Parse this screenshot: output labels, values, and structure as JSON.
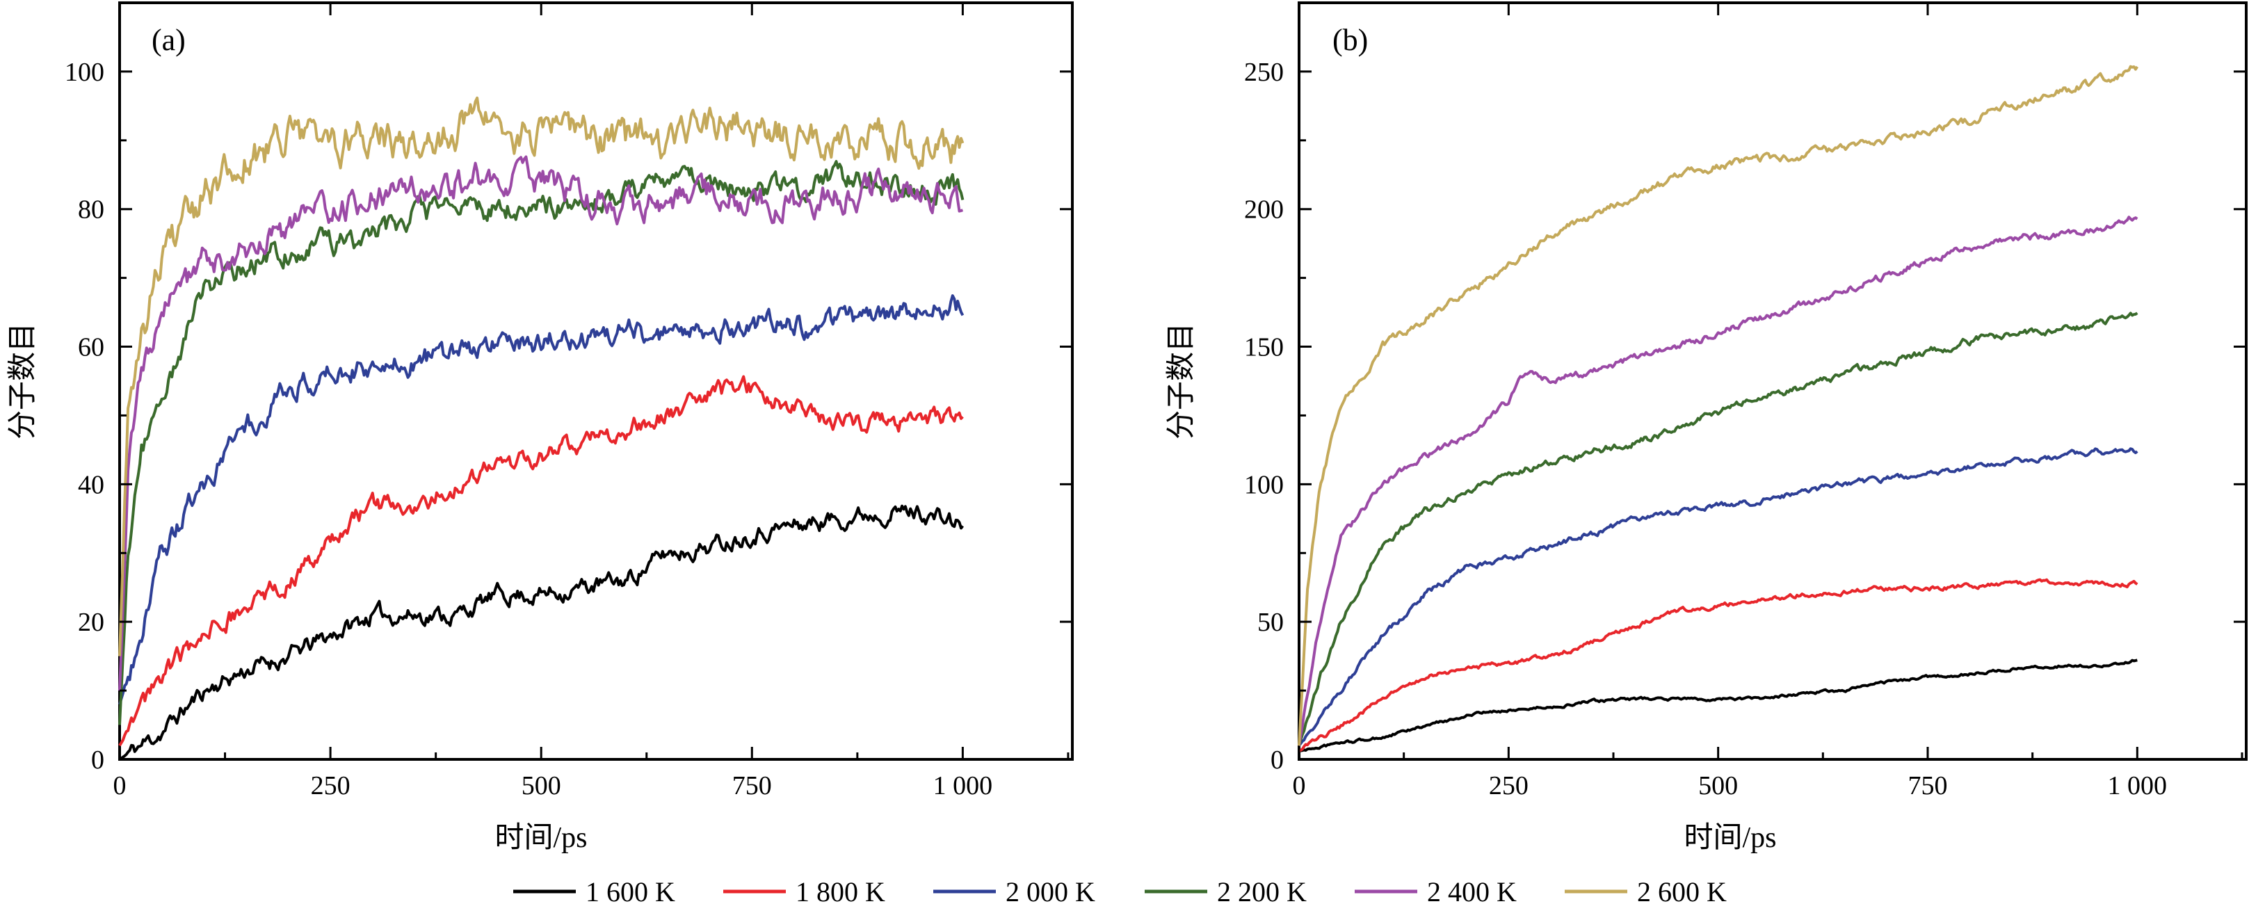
{
  "colors": {
    "1600": "#000000",
    "1800": "#e8262b",
    "2000": "#2e3f96",
    "2200": "#3a6b2c",
    "2400": "#9b4aa6",
    "2600": "#c4a95a"
  },
  "legend": [
    "1 600 K",
    "1 800 K",
    "2 000 K",
    "2 200 K",
    "2 400 K",
    "2 600 K"
  ],
  "chart_data": [
    {
      "type": "line",
      "panel_label": "(a)",
      "xlabel": "时间/ps",
      "ylabel": "分子数目",
      "xlim": [
        0,
        1130
      ],
      "ylim": [
        0,
        110
      ],
      "xticks": [
        0,
        250,
        500,
        750,
        1000
      ],
      "xtick_labels": [
        "0",
        "250",
        "500",
        "750",
        "1 000"
      ],
      "yticks": [
        0,
        20,
        40,
        60,
        80,
        100
      ],
      "ytick_labels": [
        "0",
        "20",
        "40",
        "60",
        "80",
        "100"
      ],
      "grid": false,
      "series": [
        {
          "name": "1 600 K",
          "color_key": "1600",
          "noise": 1.2,
          "x": [
            0,
            50,
            100,
            150,
            200,
            250,
            300,
            350,
            400,
            450,
            500,
            550,
            600,
            650,
            700,
            750,
            800,
            850,
            900,
            950,
            1000
          ],
          "y": [
            0,
            4,
            10,
            13,
            15,
            18,
            21,
            21,
            21,
            24,
            24,
            25,
            26,
            30,
            31,
            33,
            34,
            35,
            36,
            36,
            34
          ]
        },
        {
          "name": "1 800 K",
          "color_key": "1800",
          "noise": 1.3,
          "x": [
            0,
            50,
            100,
            150,
            200,
            250,
            300,
            350,
            400,
            450,
            500,
            550,
            600,
            650,
            700,
            750,
            800,
            850,
            900,
            950,
            1000
          ],
          "y": [
            2,
            12,
            18,
            22,
            26,
            32,
            37,
            37,
            40,
            43,
            44,
            46,
            48,
            50,
            53,
            54,
            51,
            49,
            49,
            49,
            50
          ]
        },
        {
          "name": "2 000 K",
          "color_key": "2000",
          "noise": 1.6,
          "x": [
            0,
            25,
            50,
            100,
            150,
            200,
            250,
            300,
            350,
            400,
            450,
            500,
            550,
            600,
            650,
            700,
            750,
            800,
            850,
            900,
            950,
            1000
          ],
          "y": [
            8,
            18,
            30,
            40,
            48,
            54,
            56,
            57,
            58,
            59,
            60,
            61,
            61,
            62,
            62,
            63,
            63,
            63,
            64,
            65,
            65,
            66
          ]
        },
        {
          "name": "2 200 K",
          "color_key": "2200",
          "noise": 1.6,
          "x": [
            0,
            10,
            25,
            50,
            75,
            100,
            150,
            200,
            250,
            300,
            350,
            400,
            450,
            500,
            550,
            600,
            650,
            700,
            750,
            800,
            850,
            900,
            950,
            1000
          ],
          "y": [
            5,
            30,
            45,
            52,
            60,
            68,
            72,
            74,
            75,
            76,
            79,
            80,
            80,
            80,
            81,
            82,
            84,
            84,
            83,
            83,
            84,
            84,
            83,
            83
          ]
        },
        {
          "name": "2 400 K",
          "color_key": "2400",
          "noise": 2.0,
          "x": [
            0,
            10,
            25,
            50,
            100,
            150,
            200,
            250,
            300,
            350,
            400,
            450,
            500,
            550,
            600,
            650,
            700,
            750,
            800,
            850,
            900,
            950,
            1000
          ],
          "y": [
            10,
            40,
            55,
            65,
            72,
            74,
            77,
            80,
            82,
            83,
            84,
            85,
            84,
            82,
            80,
            81,
            82,
            81,
            81,
            82,
            83,
            82,
            81
          ]
        },
        {
          "name": "2 600 K",
          "color_key": "2600",
          "noise": 2.6,
          "x": [
            0,
            10,
            25,
            50,
            100,
            150,
            200,
            250,
            300,
            350,
            400,
            450,
            500,
            550,
            600,
            650,
            700,
            750,
            800,
            850,
            900,
            950,
            1000
          ],
          "y": [
            15,
            50,
            62,
            72,
            82,
            88,
            90,
            89,
            91,
            90,
            92,
            91,
            91,
            91,
            90,
            90,
            91,
            92,
            90,
            90,
            90,
            90,
            89
          ]
        }
      ]
    },
    {
      "type": "line",
      "panel_label": "(b)",
      "xlabel": "时间/ps",
      "ylabel": "分子数目",
      "xlim": [
        0,
        1130
      ],
      "ylim": [
        0,
        275
      ],
      "xticks": [
        0,
        250,
        500,
        750,
        1000
      ],
      "xtick_labels": [
        "0",
        "250",
        "500",
        "750",
        "1 000"
      ],
      "yticks": [
        0,
        50,
        100,
        150,
        200,
        250
      ],
      "ytick_labels": [
        "0",
        "50",
        "100",
        "150",
        "200",
        "250"
      ],
      "grid": false,
      "series": [
        {
          "name": "1 600 K",
          "color_key": "1600",
          "noise": 0.5,
          "x": [
            0,
            50,
            100,
            150,
            200,
            250,
            300,
            350,
            400,
            450,
            500,
            550,
            600,
            650,
            700,
            750,
            800,
            850,
            900,
            950,
            1000
          ],
          "y": [
            3,
            6,
            8,
            12,
            16,
            18,
            19,
            21,
            22,
            22,
            22,
            22,
            24,
            25,
            28,
            30,
            31,
            33,
            34,
            34,
            36
          ]
        },
        {
          "name": "1 800 K",
          "color_key": "1800",
          "noise": 0.8,
          "x": [
            0,
            50,
            100,
            150,
            200,
            250,
            300,
            350,
            400,
            450,
            500,
            550,
            600,
            650,
            700,
            750,
            800,
            850,
            900,
            950,
            1000
          ],
          "y": [
            3,
            12,
            22,
            30,
            33,
            35,
            37,
            43,
            48,
            54,
            56,
            58,
            60,
            61,
            62,
            62,
            63,
            64,
            64,
            64,
            64
          ]
        },
        {
          "name": "2 000 K",
          "color_key": "2000",
          "noise": 1.0,
          "x": [
            0,
            25,
            50,
            100,
            150,
            200,
            250,
            300,
            350,
            400,
            450,
            500,
            550,
            600,
            650,
            700,
            750,
            800,
            850,
            900,
            950,
            1000
          ],
          "y": [
            5,
            15,
            25,
            45,
            60,
            70,
            73,
            78,
            82,
            87,
            90,
            92,
            94,
            97,
            100,
            102,
            104,
            106,
            108,
            110,
            112,
            112
          ]
        },
        {
          "name": "2 200 K",
          "color_key": "2200",
          "noise": 1.2,
          "x": [
            0,
            25,
            50,
            100,
            150,
            200,
            250,
            300,
            350,
            400,
            450,
            500,
            550,
            600,
            650,
            700,
            750,
            800,
            850,
            900,
            950,
            1000
          ],
          "y": [
            5,
            30,
            50,
            78,
            90,
            97,
            104,
            108,
            112,
            115,
            120,
            126,
            132,
            135,
            140,
            144,
            148,
            152,
            155,
            156,
            158,
            162
          ]
        },
        {
          "name": "2 400 K",
          "color_key": "2400",
          "noise": 1.2,
          "x": [
            0,
            25,
            50,
            100,
            150,
            200,
            250,
            270,
            300,
            350,
            400,
            450,
            500,
            550,
            600,
            650,
            700,
            750,
            800,
            850,
            900,
            950,
            1000
          ],
          "y": [
            5,
            50,
            80,
            100,
            110,
            118,
            130,
            141,
            138,
            141,
            146,
            150,
            155,
            160,
            165,
            170,
            176,
            182,
            186,
            190,
            190,
            192,
            197
          ]
        },
        {
          "name": "2 600 K",
          "color_key": "2600",
          "noise": 1.4,
          "x": [
            0,
            10,
            25,
            50,
            100,
            150,
            200,
            250,
            300,
            350,
            400,
            450,
            500,
            550,
            600,
            650,
            700,
            750,
            800,
            850,
            900,
            950,
            1000
          ],
          "y": [
            5,
            60,
            100,
            128,
            150,
            160,
            170,
            180,
            190,
            198,
            205,
            211,
            216,
            218,
            220,
            222,
            225,
            228,
            232,
            238,
            242,
            246,
            252
          ]
        }
      ]
    }
  ]
}
